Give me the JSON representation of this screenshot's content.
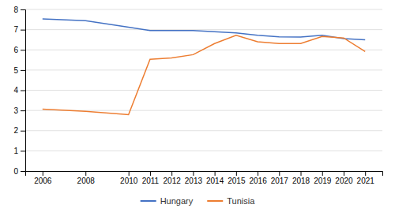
{
  "chart_data": {
    "type": "line",
    "x": [
      2006,
      2008,
      2010,
      2011,
      2012,
      2013,
      2014,
      2015,
      2016,
      2017,
      2018,
      2019,
      2020,
      2021
    ],
    "series": [
      {
        "name": "Hungary",
        "color": "#4472C4",
        "values": [
          7.53,
          7.44,
          7.12,
          6.96,
          6.96,
          6.96,
          6.9,
          6.84,
          6.72,
          6.64,
          6.63,
          6.72,
          6.56,
          6.5
        ]
      },
      {
        "name": "Tunisia",
        "color": "#ED7D31",
        "values": [
          3.06,
          2.96,
          2.79,
          5.53,
          5.6,
          5.76,
          6.31,
          6.72,
          6.4,
          6.31,
          6.31,
          6.66,
          6.59,
          5.92
        ]
      }
    ],
    "xlim": [
      2005.2,
      2021.8
    ],
    "xticks": [
      2006,
      2008,
      2010,
      2011,
      2012,
      2013,
      2014,
      2015,
      2016,
      2017,
      2018,
      2019,
      2020,
      2021
    ],
    "ylim": [
      0,
      8
    ],
    "yticks": [
      0,
      1,
      2,
      3,
      4,
      5,
      6,
      7,
      8
    ],
    "grid": true,
    "legend": "bottom"
  }
}
